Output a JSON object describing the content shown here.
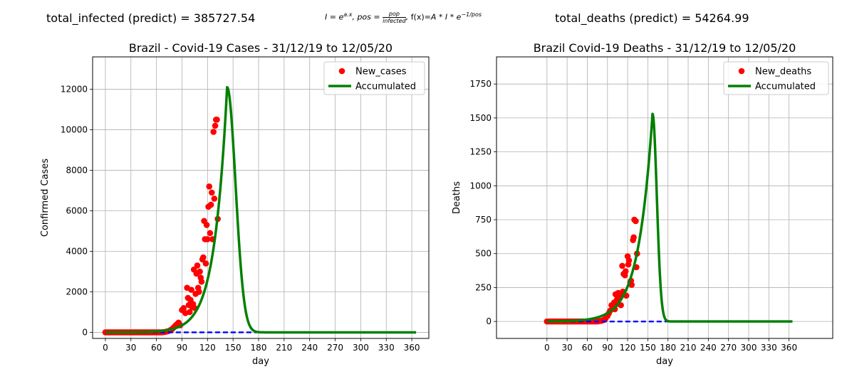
{
  "header": {
    "left": "total_infected (predict) = 385727.54",
    "center": "I = e^{a.x}, pos = pop / infected, f(x)=A*I*e^{-1/pos}",
    "right": "total_deaths (predict) = 54264.99"
  },
  "chart_data": [
    {
      "type": "scatter",
      "title": "Brazil - Covid-19 Cases - 31/12/19 to 12/05/20",
      "xlabel": "day",
      "ylabel": "Confirmed Cases",
      "xlim": [
        -15,
        380
      ],
      "ylim": [
        -300,
        13600
      ],
      "xticks": [
        0,
        30,
        60,
        90,
        120,
        150,
        180,
        210,
        240,
        270,
        300,
        330,
        360
      ],
      "yticks": [
        0,
        2000,
        4000,
        6000,
        8000,
        10000,
        12000
      ],
      "ytick_labels": [
        "0",
        "2000",
        "4000",
        "6000",
        "8000",
        "10000",
        "12000"
      ],
      "grid": true,
      "legend_position": "top-right",
      "colors": {
        "points": "#ff0000",
        "curve": "#008000",
        "baseline": "#0000ff"
      },
      "series": [
        {
          "name": "New_cases",
          "style": "points",
          "x": [
            0,
            2,
            4,
            6,
            8,
            10,
            12,
            14,
            16,
            18,
            20,
            22,
            24,
            26,
            28,
            30,
            32,
            34,
            36,
            38,
            40,
            42,
            44,
            46,
            48,
            50,
            52,
            54,
            56,
            58,
            60,
            62,
            64,
            66,
            68,
            70,
            72,
            74,
            76,
            78,
            80,
            82,
            84,
            86,
            88,
            90,
            92,
            94,
            96,
            98,
            100,
            102,
            104,
            106,
            108,
            110,
            112,
            114,
            116,
            118,
            120,
            122,
            124,
            126,
            128,
            130,
            132
          ],
          "y": [
            0,
            0,
            0,
            0,
            0,
            0,
            0,
            0,
            0,
            0,
            0,
            0,
            0,
            0,
            0,
            0,
            0,
            0,
            0,
            0,
            0,
            0,
            0,
            0,
            0,
            0,
            0,
            0,
            0,
            0,
            0,
            0,
            0,
            0,
            10,
            20,
            40,
            60,
            100,
            150,
            230,
            320,
            400,
            480,
            350,
            1100,
            1200,
            950,
            2200,
            1350,
            1600,
            1250,
            3100,
            1900,
            3300,
            2000,
            2700,
            3600,
            5500,
            3400,
            4600,
            7200,
            6300,
            4600,
            6600,
            10500,
            5600
          ]
        },
        {
          "name": "",
          "style": "points",
          "x": [
            97,
            99,
            101,
            103,
            105,
            107,
            109,
            111,
            113,
            115,
            117,
            119,
            121,
            123,
            125,
            127,
            129,
            131
          ],
          "y": [
            1700,
            1000,
            2100,
            1400,
            1200,
            2900,
            2200,
            3000,
            2500,
            3700,
            4600,
            5300,
            6200,
            4900,
            6900,
            9900,
            10200,
            10500
          ]
        },
        {
          "name": "Accumulated",
          "style": "curve",
          "curve_model": {
            "A": 12100,
            "peak_day": 143,
            "growth_rate": 0.067,
            "decay_width": 14,
            "end_day": 365
          }
        },
        {
          "name": "",
          "style": "dashed",
          "x": [
            0,
            365
          ],
          "y": [
            0,
            0
          ]
        }
      ]
    },
    {
      "type": "scatter",
      "title": "Brazil Covid-19 Deaths - 31/12/19 to 12/05/20",
      "xlabel": "day",
      "ylabel": "Deaths",
      "xlim": [
        -75,
        425
      ],
      "ylim": [
        -125,
        1950
      ],
      "xticks": [
        0,
        30,
        60,
        90,
        120,
        150,
        180,
        210,
        240,
        270,
        300,
        330,
        360
      ],
      "yticks": [
        0,
        250,
        500,
        750,
        1000,
        1250,
        1500,
        1750
      ],
      "ytick_labels": [
        "0",
        "250",
        "500",
        "750",
        "1000",
        "1250",
        "1500",
        "1750"
      ],
      "grid": true,
      "legend_position": "top-right",
      "colors": {
        "points": "#ff0000",
        "curve": "#008000",
        "baseline": "#0000ff"
      },
      "series": [
        {
          "name": "New_deaths",
          "style": "points",
          "x": [
            0,
            3,
            6,
            9,
            12,
            15,
            18,
            21,
            24,
            27,
            30,
            33,
            36,
            39,
            42,
            45,
            48,
            51,
            54,
            57,
            60,
            63,
            66,
            69,
            72,
            75,
            78,
            81,
            84,
            87,
            90,
            92,
            94,
            96,
            98,
            100,
            102,
            104,
            106,
            108,
            110,
            112,
            114,
            116,
            118,
            120,
            122,
            124,
            126,
            128,
            130,
            132,
            134
          ],
          "y": [
            0,
            0,
            0,
            0,
            0,
            0,
            0,
            0,
            0,
            0,
            0,
            0,
            0,
            0,
            0,
            0,
            0,
            0,
            0,
            0,
            0,
            0,
            0,
            0,
            0,
            0,
            2,
            5,
            10,
            20,
            40,
            60,
            80,
            120,
            100,
            140,
            200,
            160,
            210,
            190,
            120,
            410,
            350,
            340,
            190,
            480,
            450,
            290,
            270,
            600,
            750,
            740,
            500
          ]
        },
        {
          "name": "",
          "style": "points",
          "x": [
            101,
            105,
            109,
            113,
            117,
            121,
            125,
            129,
            133
          ],
          "y": [
            90,
            130,
            180,
            220,
            370,
            420,
            300,
            620,
            400
          ]
        },
        {
          "name": "Accumulated",
          "style": "curve",
          "curve_model": {
            "A": 1530,
            "peak_day": 157,
            "growth_rate": 0.048,
            "decay_width": 9,
            "end_day": 365
          }
        },
        {
          "name": "",
          "style": "dashed",
          "x": [
            0,
            365
          ],
          "y": [
            0,
            0
          ]
        }
      ]
    }
  ]
}
